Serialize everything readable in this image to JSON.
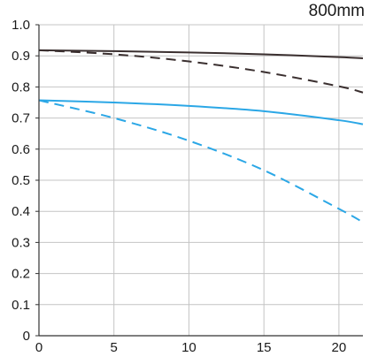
{
  "chart_data": {
    "type": "line",
    "title": "800mm",
    "xlabel": "",
    "ylabel": "",
    "xlim": [
      0,
      21.6
    ],
    "ylim": [
      0,
      1.0
    ],
    "x_ticks": [
      0,
      5,
      10,
      15,
      20
    ],
    "y_ticks": [
      0,
      0.1,
      0.2,
      0.3,
      0.4,
      0.5,
      0.6,
      0.7,
      0.8,
      0.9,
      1.0
    ],
    "x_tick_labels": [
      "0",
      "5",
      "10",
      "15",
      "20"
    ],
    "y_tick_labels": [
      "0",
      "0.1",
      "0.2",
      "0.3",
      "0.4",
      "0.5",
      "0.6",
      "0.7",
      "0.8",
      "0.9",
      "1.0"
    ],
    "grid": true,
    "legend": "none",
    "series": [
      {
        "color": "#3a2f2f",
        "dash": "solid",
        "points": [
          [
            0,
            0.918
          ],
          [
            5,
            0.915
          ],
          [
            10,
            0.911
          ],
          [
            15,
            0.905
          ],
          [
            20,
            0.896
          ],
          [
            21.6,
            0.892
          ]
        ]
      },
      {
        "color": "#3a2f2f",
        "dash": "dashed",
        "points": [
          [
            0,
            0.918
          ],
          [
            5,
            0.905
          ],
          [
            10,
            0.882
          ],
          [
            15,
            0.848
          ],
          [
            20,
            0.802
          ],
          [
            21.6,
            0.782
          ]
        ]
      },
      {
        "color": "#2ba7e6",
        "dash": "solid",
        "points": [
          [
            0,
            0.757
          ],
          [
            5,
            0.75
          ],
          [
            10,
            0.739
          ],
          [
            15,
            0.722
          ],
          [
            20,
            0.693
          ],
          [
            21.6,
            0.68
          ]
        ]
      },
      {
        "color": "#2ba7e6",
        "dash": "dashed",
        "points": [
          [
            0,
            0.757
          ],
          [
            5,
            0.7
          ],
          [
            10,
            0.627
          ],
          [
            15,
            0.532
          ],
          [
            20,
            0.408
          ],
          [
            21.6,
            0.365
          ]
        ]
      }
    ]
  }
}
